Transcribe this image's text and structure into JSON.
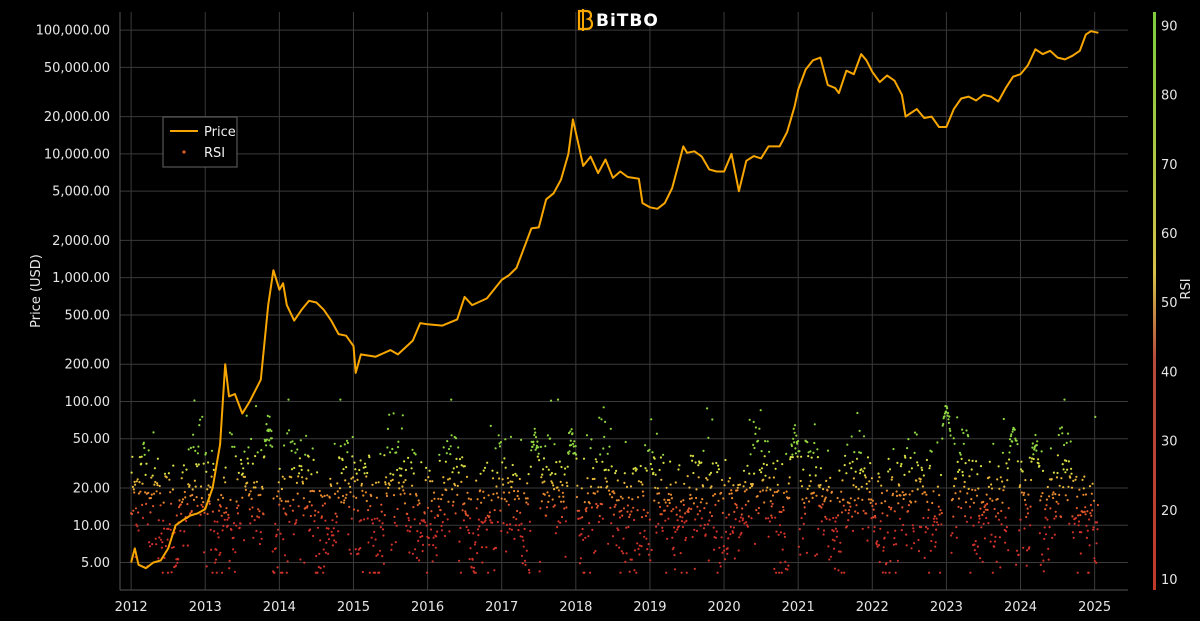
{
  "logo": {
    "text": "BiTBO",
    "icon": "bitbo-b-icon",
    "color": "#f7a600"
  },
  "legend": {
    "items": [
      {
        "label": "Price",
        "color": "#f7a600",
        "kind": "line"
      },
      {
        "label": "RSI",
        "color": "#e05a2b",
        "kind": "dots"
      }
    ],
    "placement": "upper-left"
  },
  "chart_data": {
    "type": "line",
    "yscale": "log",
    "ylabel": "Price (USD)",
    "y2label": "RSI",
    "xlim": [
      2011.85,
      2025.45
    ],
    "ylim": [
      3.0,
      140000
    ],
    "y2lim": [
      8.5,
      92
    ],
    "grid": true,
    "x_ticks": [
      "2012",
      "2013",
      "2014",
      "2015",
      "2016",
      "2017",
      "2018",
      "2019",
      "2020",
      "2021",
      "2022",
      "2023",
      "2024",
      "2025"
    ],
    "x_tick_values": [
      2012,
      2013,
      2014,
      2015,
      2016,
      2017,
      2018,
      2019,
      2020,
      2021,
      2022,
      2023,
      2024,
      2025
    ],
    "y_ticks": [
      "5.00",
      "10.00",
      "20.00",
      "50.00",
      "100.00",
      "200.00",
      "500.00",
      "1,000.00",
      "2,000.00",
      "5,000.00",
      "10,000.00",
      "20,000.00",
      "50,000.00",
      "100,000.00"
    ],
    "y_tick_values": [
      5,
      10,
      20,
      50,
      100,
      200,
      500,
      1000,
      2000,
      5000,
      10000,
      20000,
      50000,
      100000
    ],
    "y2_ticks": [
      "10",
      "20",
      "30",
      "40",
      "50",
      "60",
      "70",
      "80",
      "90"
    ],
    "y2_tick_values": [
      10,
      20,
      30,
      40,
      50,
      60,
      70,
      80,
      90
    ],
    "rsi_colorscale": [
      [
        10,
        "#c0392b"
      ],
      [
        40,
        "#c0392b"
      ],
      [
        50,
        "#e8b83a"
      ],
      [
        60,
        "#d4e04a"
      ],
      [
        90,
        "#7ccd3f"
      ]
    ],
    "series": [
      {
        "name": "Price",
        "color": "#f7a600",
        "points": [
          [
            2012.0,
            5
          ],
          [
            2012.05,
            6.5
          ],
          [
            2012.1,
            4.8
          ],
          [
            2012.2,
            4.5
          ],
          [
            2012.3,
            5
          ],
          [
            2012.4,
            5.2
          ],
          [
            2012.5,
            6.5
          ],
          [
            2012.6,
            10
          ],
          [
            2012.7,
            11
          ],
          [
            2012.8,
            12
          ],
          [
            2012.9,
            12.5
          ],
          [
            2013.0,
            13.5
          ],
          [
            2013.1,
            20
          ],
          [
            2013.2,
            45
          ],
          [
            2013.27,
            200
          ],
          [
            2013.32,
            110
          ],
          [
            2013.4,
            115
          ],
          [
            2013.5,
            80
          ],
          [
            2013.6,
            100
          ],
          [
            2013.75,
            150
          ],
          [
            2013.85,
            600
          ],
          [
            2013.92,
            1150
          ],
          [
            2014.0,
            800
          ],
          [
            2014.05,
            900
          ],
          [
            2014.1,
            600
          ],
          [
            2014.2,
            450
          ],
          [
            2014.3,
            550
          ],
          [
            2014.4,
            650
          ],
          [
            2014.5,
            630
          ],
          [
            2014.6,
            550
          ],
          [
            2014.7,
            450
          ],
          [
            2014.8,
            350
          ],
          [
            2014.9,
            340
          ],
          [
            2015.0,
            280
          ],
          [
            2015.03,
            170
          ],
          [
            2015.1,
            240
          ],
          [
            2015.3,
            230
          ],
          [
            2015.5,
            260
          ],
          [
            2015.6,
            240
          ],
          [
            2015.8,
            310
          ],
          [
            2015.9,
            430
          ],
          [
            2016.0,
            420
          ],
          [
            2016.2,
            410
          ],
          [
            2016.4,
            460
          ],
          [
            2016.5,
            700
          ],
          [
            2016.6,
            600
          ],
          [
            2016.8,
            680
          ],
          [
            2017.0,
            960
          ],
          [
            2017.1,
            1050
          ],
          [
            2017.2,
            1200
          ],
          [
            2017.4,
            2500
          ],
          [
            2017.5,
            2550
          ],
          [
            2017.6,
            4300
          ],
          [
            2017.7,
            4800
          ],
          [
            2017.8,
            6200
          ],
          [
            2017.9,
            10000
          ],
          [
            2017.96,
            19000
          ],
          [
            2018.05,
            11000
          ],
          [
            2018.1,
            8000
          ],
          [
            2018.2,
            9500
          ],
          [
            2018.3,
            7000
          ],
          [
            2018.4,
            9000
          ],
          [
            2018.5,
            6400
          ],
          [
            2018.6,
            7200
          ],
          [
            2018.7,
            6500
          ],
          [
            2018.85,
            6300
          ],
          [
            2018.9,
            4000
          ],
          [
            2019.0,
            3700
          ],
          [
            2019.1,
            3600
          ],
          [
            2019.2,
            4000
          ],
          [
            2019.3,
            5300
          ],
          [
            2019.45,
            11500
          ],
          [
            2019.5,
            10200
          ],
          [
            2019.6,
            10500
          ],
          [
            2019.7,
            9500
          ],
          [
            2019.8,
            7500
          ],
          [
            2019.9,
            7200
          ],
          [
            2020.0,
            7200
          ],
          [
            2020.1,
            10000
          ],
          [
            2020.2,
            5000
          ],
          [
            2020.3,
            8800
          ],
          [
            2020.4,
            9600
          ],
          [
            2020.5,
            9200
          ],
          [
            2020.6,
            11500
          ],
          [
            2020.75,
            11500
          ],
          [
            2020.85,
            15000
          ],
          [
            2020.95,
            24000
          ],
          [
            2021.0,
            33000
          ],
          [
            2021.1,
            48000
          ],
          [
            2021.2,
            57000
          ],
          [
            2021.3,
            60000
          ],
          [
            2021.4,
            36000
          ],
          [
            2021.5,
            34000
          ],
          [
            2021.55,
            31000
          ],
          [
            2021.65,
            47000
          ],
          [
            2021.75,
            44000
          ],
          [
            2021.85,
            64000
          ],
          [
            2021.92,
            57000
          ],
          [
            2022.0,
            46000
          ],
          [
            2022.1,
            38000
          ],
          [
            2022.2,
            43000
          ],
          [
            2022.3,
            39000
          ],
          [
            2022.4,
            30000
          ],
          [
            2022.45,
            20000
          ],
          [
            2022.5,
            21000
          ],
          [
            2022.6,
            23000
          ],
          [
            2022.7,
            19500
          ],
          [
            2022.8,
            20000
          ],
          [
            2022.9,
            16500
          ],
          [
            2023.0,
            16500
          ],
          [
            2023.1,
            23000
          ],
          [
            2023.2,
            28000
          ],
          [
            2023.3,
            29000
          ],
          [
            2023.4,
            27000
          ],
          [
            2023.5,
            30000
          ],
          [
            2023.6,
            29000
          ],
          [
            2023.7,
            26500
          ],
          [
            2023.8,
            34000
          ],
          [
            2023.9,
            42000
          ],
          [
            2024.0,
            44000
          ],
          [
            2024.1,
            52000
          ],
          [
            2024.2,
            70000
          ],
          [
            2024.3,
            64000
          ],
          [
            2024.4,
            68000
          ],
          [
            2024.5,
            60000
          ],
          [
            2024.6,
            58000
          ],
          [
            2024.7,
            62000
          ],
          [
            2024.8,
            68000
          ],
          [
            2024.88,
            92000
          ],
          [
            2024.95,
            98000
          ],
          [
            2025.05,
            95000
          ]
        ]
      }
    ],
    "rsi_generator": {
      "start": 2012.0,
      "end": 2025.05,
      "count": 2200,
      "mean": 21,
      "spread": 4.5,
      "note_peaks": [
        [
          2013.85,
          32
        ],
        [
          2017.45,
          31
        ],
        [
          2017.95,
          31
        ],
        [
          2020.95,
          31
        ],
        [
          2023.0,
          35
        ],
        [
          2023.9,
          32
        ],
        [
          2024.2,
          30
        ]
      ],
      "note_troughs": [
        [
          2012.6,
          13
        ],
        [
          2016.6,
          12
        ],
        [
          2019.0,
          14
        ],
        [
          2023.4,
          14
        ],
        [
          2023.95,
          14
        ]
      ]
    }
  }
}
